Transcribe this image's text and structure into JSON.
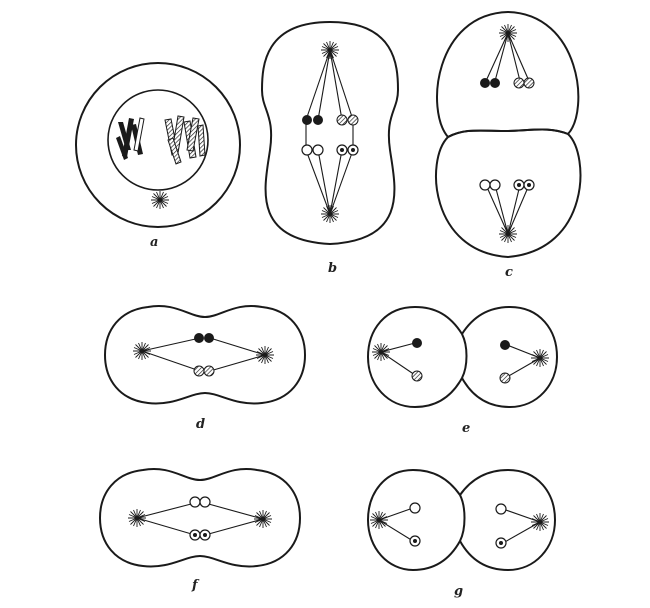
{
  "figure": {
    "panel_labels": {
      "a": "a",
      "b": "b",
      "c": "c",
      "d": "d",
      "e": "e",
      "f": "f",
      "g": "g"
    },
    "colors": {
      "ink": "#1a1a1a",
      "paper": "#ffffff"
    }
  }
}
